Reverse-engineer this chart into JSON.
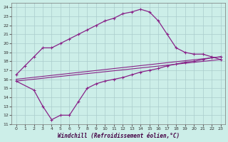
{
  "xlabel": "Windchill (Refroidissement éolien,°C)",
  "bg_color": "#cceee8",
  "grid_color": "#aacccc",
  "line_color": "#882288",
  "xlim": [
    -0.5,
    23.5
  ],
  "ylim": [
    11,
    24.5
  ],
  "xticks": [
    0,
    1,
    2,
    3,
    4,
    5,
    6,
    7,
    8,
    9,
    10,
    11,
    12,
    13,
    14,
    15,
    16,
    17,
    18,
    19,
    20,
    21,
    22,
    23
  ],
  "yticks": [
    11,
    12,
    13,
    14,
    15,
    16,
    17,
    18,
    19,
    20,
    21,
    22,
    23,
    24
  ],
  "series": [
    {
      "x": [
        0,
        1,
        2,
        3,
        4,
        5,
        6,
        7,
        8,
        9,
        10,
        11,
        12,
        13,
        14,
        15,
        16,
        17,
        18,
        19,
        20,
        21,
        22,
        23
      ],
      "y": [
        16.5,
        17.5,
        18.5,
        19.5,
        19.5,
        20.0,
        20.5,
        21.0,
        21.5,
        22.0,
        22.5,
        22.8,
        23.3,
        23.5,
        23.8,
        23.5,
        22.5,
        21.0,
        19.5,
        19.0,
        18.8,
        18.8,
        18.5,
        18.2
      ]
    },
    {
      "x": [
        0,
        23
      ],
      "y": [
        16.0,
        18.5
      ]
    },
    {
      "x": [
        0,
        23
      ],
      "y": [
        15.8,
        18.2
      ]
    },
    {
      "x": [
        0,
        2,
        3,
        4,
        5,
        6,
        7,
        8,
        9,
        10,
        11,
        12,
        13,
        14,
        15,
        16,
        17,
        18,
        19,
        20,
        21,
        22,
        23
      ],
      "y": [
        15.8,
        14.8,
        13.0,
        11.5,
        12.0,
        12.0,
        13.5,
        15.0,
        15.5,
        15.8,
        16.0,
        16.2,
        16.5,
        16.8,
        17.0,
        17.2,
        17.5,
        17.7,
        17.9,
        18.0,
        18.2,
        18.4,
        18.5
      ]
    }
  ]
}
